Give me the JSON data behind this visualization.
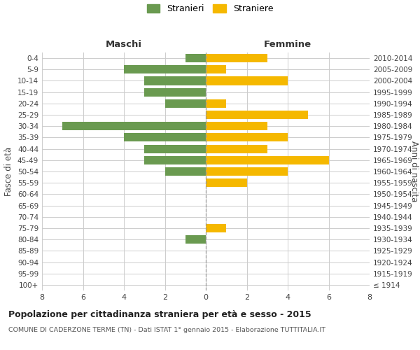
{
  "age_groups": [
    "100+",
    "95-99",
    "90-94",
    "85-89",
    "80-84",
    "75-79",
    "70-74",
    "65-69",
    "60-64",
    "55-59",
    "50-54",
    "45-49",
    "40-44",
    "35-39",
    "30-34",
    "25-29",
    "20-24",
    "15-19",
    "10-14",
    "5-9",
    "0-4"
  ],
  "birth_years": [
    "≤ 1914",
    "1915-1919",
    "1920-1924",
    "1925-1929",
    "1930-1934",
    "1935-1939",
    "1940-1944",
    "1945-1949",
    "1950-1954",
    "1955-1959",
    "1960-1964",
    "1965-1969",
    "1970-1974",
    "1975-1979",
    "1980-1984",
    "1985-1989",
    "1990-1994",
    "1995-1999",
    "2000-2004",
    "2005-2009",
    "2010-2014"
  ],
  "maschi": [
    0,
    0,
    0,
    0,
    1,
    0,
    0,
    0,
    0,
    0,
    2,
    3,
    3,
    4,
    7,
    0,
    2,
    3,
    3,
    4,
    1
  ],
  "femmine": [
    0,
    0,
    0,
    0,
    0,
    1,
    0,
    0,
    0,
    2,
    4,
    6,
    3,
    4,
    3,
    5,
    1,
    0,
    4,
    1,
    3
  ],
  "color_maschi": "#6a9a50",
  "color_femmine": "#f5b800",
  "xlim": 8,
  "title": "Popolazione per cittadinanza straniera per età e sesso - 2015",
  "subtitle": "COMUNE DI CADERZONE TERME (TN) - Dati ISTAT 1° gennaio 2015 - Elaborazione TUTTITALIA.IT",
  "ylabel_left": "Fasce di età",
  "ylabel_right": "Anni di nascita",
  "label_maschi": "Maschi",
  "label_femmine": "Femmine",
  "legend_stranieri": "Stranieri",
  "legend_straniere": "Straniere",
  "background_color": "#ffffff",
  "grid_color": "#cccccc",
  "axis_label_color": "#555555"
}
